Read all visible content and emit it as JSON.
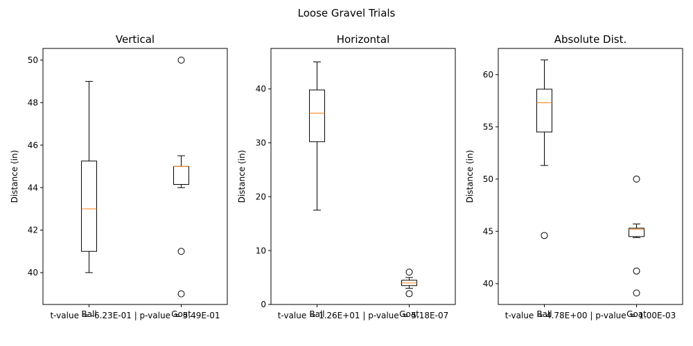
{
  "figure": {
    "suptitle": "Loose Gravel Trials"
  },
  "chart_data": [
    {
      "type": "box",
      "title": "Vertical",
      "ylabel": "Distance (in)",
      "xlabel": "t-value = -6.23E-01 | p-value = 5.49E-01",
      "categories": [
        "Ball",
        "Goat"
      ],
      "ylim": [
        38.5,
        50.55
      ],
      "yticks": [
        40,
        42,
        44,
        46,
        48,
        50
      ],
      "boxes": [
        {
          "name": "Ball",
          "whisker_low": 40,
          "q1": 41,
          "median": 43,
          "q3": 45.25,
          "whisker_high": 49,
          "fliers": []
        },
        {
          "name": "Goat",
          "whisker_low": 44,
          "q1": 44.15,
          "median": 45,
          "q3": 45,
          "whisker_high": 45.5,
          "fliers": [
            50,
            41,
            39
          ]
        }
      ]
    },
    {
      "type": "box",
      "title": "Horizontal",
      "ylabel": "Distance (in)",
      "xlabel": "t-value = 1.26E+01 | p-value = 5.18E-07",
      "categories": [
        "Ball",
        "Goat"
      ],
      "ylim": [
        0,
        47.5
      ],
      "yticks": [
        0,
        10,
        20,
        30,
        40
      ],
      "boxes": [
        {
          "name": "Ball",
          "whisker_low": 17.5,
          "q1": 30.2,
          "median": 35.5,
          "q3": 39.8,
          "whisker_high": 45,
          "fliers": []
        },
        {
          "name": "Goat",
          "whisker_low": 3,
          "q1": 3.5,
          "median": 4,
          "q3": 4.5,
          "whisker_high": 5,
          "fliers": [
            6,
            2
          ]
        }
      ]
    },
    {
      "type": "box",
      "title": "Absolute Dist.",
      "ylabel": "Distance (in)",
      "xlabel": "t-value = 4.78E+00 | p-value = 1.00E-03",
      "categories": [
        "Ball",
        "Goat"
      ],
      "ylim": [
        38,
        62.5
      ],
      "yticks": [
        40,
        45,
        50,
        55,
        60
      ],
      "boxes": [
        {
          "name": "Ball",
          "whisker_low": 51.3,
          "q1": 54.5,
          "median": 57.3,
          "q3": 58.6,
          "whisker_high": 61.4,
          "fliers": [
            44.6
          ]
        },
        {
          "name": "Goat",
          "whisker_low": 44.4,
          "q1": 44.5,
          "median": 45.2,
          "q3": 45.3,
          "whisker_high": 45.7,
          "fliers": [
            50,
            41.2,
            39.1
          ]
        }
      ],
      "box_color": "#000000",
      "median_color": "#ff7f0e"
    }
  ]
}
